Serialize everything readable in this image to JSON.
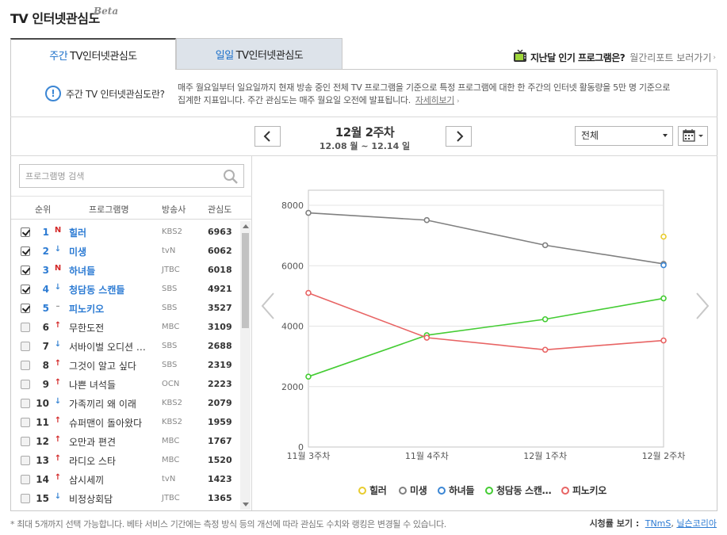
{
  "header": {
    "title": "TV 인터넷관심도",
    "badge": "Beta"
  },
  "tabs": [
    {
      "prefix": "주간",
      "label": "TV인터넷관심도",
      "active": true
    },
    {
      "prefix": "일일",
      "label": "TV인터넷관심도",
      "active": false
    }
  ],
  "last_month": {
    "question": "지난달 인기 프로그램은?",
    "link": "월간리포트 보러가기",
    "icon": "tv-icon"
  },
  "info": {
    "question": "주간 TV 인터넷관심도란?",
    "line1": "매주 월요일부터 일요일까지 현재 방송 중인 전체 TV 프로그램을 기준으로 특정 프로그램에 대한 한 주간의 인터넷 활동량을 5만 명 기준으로",
    "line2": "집계한 지표입니다. 주간 관심도는 매주 월요일 오전에 발표됩니다.",
    "more": "자세히보기"
  },
  "week_nav": {
    "label": "12월 2주차",
    "range": "12.08 월 ~ 12.14 일",
    "category": "전체"
  },
  "search": {
    "placeholder": "프로그램명 검색"
  },
  "list_header": {
    "rank": "순위",
    "program": "프로그램명",
    "broadcaster": "방송사",
    "score": "관심도"
  },
  "rows": [
    {
      "checked": true,
      "rank": "1",
      "trend": "new",
      "trend_label": "N",
      "name": "힐러",
      "broadcaster": "KBS2",
      "score": "6963"
    },
    {
      "checked": true,
      "rank": "2",
      "trend": "down",
      "trend_label": "↓",
      "name": "미생",
      "broadcaster": "tvN",
      "score": "6062"
    },
    {
      "checked": true,
      "rank": "3",
      "trend": "new",
      "trend_label": "N",
      "name": "하녀들",
      "broadcaster": "JTBC",
      "score": "6018"
    },
    {
      "checked": true,
      "rank": "4",
      "trend": "down",
      "trend_label": "↓",
      "name": "청담동 스캔들",
      "broadcaster": "SBS",
      "score": "4921"
    },
    {
      "checked": true,
      "rank": "5",
      "trend": "same",
      "trend_label": "–",
      "name": "피노키오",
      "broadcaster": "SBS",
      "score": "3527"
    },
    {
      "checked": false,
      "rank": "6",
      "trend": "up",
      "trend_label": "↑",
      "name": "무한도전",
      "broadcaster": "MBC",
      "score": "3109"
    },
    {
      "checked": false,
      "rank": "7",
      "trend": "down",
      "trend_label": "↓",
      "name": "서바이벌 오디션 …",
      "broadcaster": "SBS",
      "score": "2688"
    },
    {
      "checked": false,
      "rank": "8",
      "trend": "up",
      "trend_label": "↑",
      "name": "그것이 알고 싶다",
      "broadcaster": "SBS",
      "score": "2319"
    },
    {
      "checked": false,
      "rank": "9",
      "trend": "up",
      "trend_label": "↑",
      "name": "나쁜 녀석들",
      "broadcaster": "OCN",
      "score": "2223"
    },
    {
      "checked": false,
      "rank": "10",
      "trend": "down",
      "trend_label": "↓",
      "name": "가족끼리 왜 이래",
      "broadcaster": "KBS2",
      "score": "2079"
    },
    {
      "checked": false,
      "rank": "11",
      "trend": "up",
      "trend_label": "↑",
      "name": "슈퍼맨이 돌아왔다",
      "broadcaster": "KBS2",
      "score": "1959"
    },
    {
      "checked": false,
      "rank": "12",
      "trend": "up",
      "trend_label": "↑",
      "name": "오만과 편견",
      "broadcaster": "MBC",
      "score": "1767"
    },
    {
      "checked": false,
      "rank": "13",
      "trend": "up",
      "trend_label": "↑",
      "name": "라디오 스타",
      "broadcaster": "MBC",
      "score": "1520"
    },
    {
      "checked": false,
      "rank": "14",
      "trend": "up",
      "trend_label": "↑",
      "name": "삼시세끼",
      "broadcaster": "tvN",
      "score": "1423"
    },
    {
      "checked": false,
      "rank": "15",
      "trend": "down",
      "trend_label": "↓",
      "name": "비정상회담",
      "broadcaster": "JTBC",
      "score": "1365"
    }
  ],
  "chart_data": {
    "type": "line",
    "x": [
      "11월 3주차",
      "11월 4주차",
      "12월 1주차",
      "12월 2주차"
    ],
    "ylim": [
      0,
      8500
    ],
    "yticks": [
      0,
      2000,
      4000,
      6000,
      8000
    ],
    "grid": true,
    "legend_position": "bottom",
    "series": [
      {
        "name": "힐러",
        "color": "#e8cc2e",
        "values": [
          null,
          null,
          null,
          6963
        ]
      },
      {
        "name": "미생",
        "color": "#808080",
        "values": [
          7750,
          7510,
          6680,
          6062
        ]
      },
      {
        "name": "하녀들",
        "color": "#3b86d4",
        "values": [
          null,
          null,
          null,
          6018
        ]
      },
      {
        "name": "청담동 스캔…",
        "color": "#44cc33",
        "values": [
          2330,
          3700,
          4230,
          4921
        ]
      },
      {
        "name": "피노키오",
        "color": "#e86464",
        "values": [
          5100,
          3620,
          3220,
          3527
        ]
      }
    ]
  },
  "footer": {
    "note": "* 최대 5개까지 선택 가능합니다. 베타 서비스 기간에는 측정 방식 등의 개선에 따라 관심도 수치와 랭킹은 변경될 수 있습니다.",
    "ratings_label": "시청률 보기 :",
    "ratings_links": [
      "TNmS",
      "닐슨코리아"
    ]
  }
}
